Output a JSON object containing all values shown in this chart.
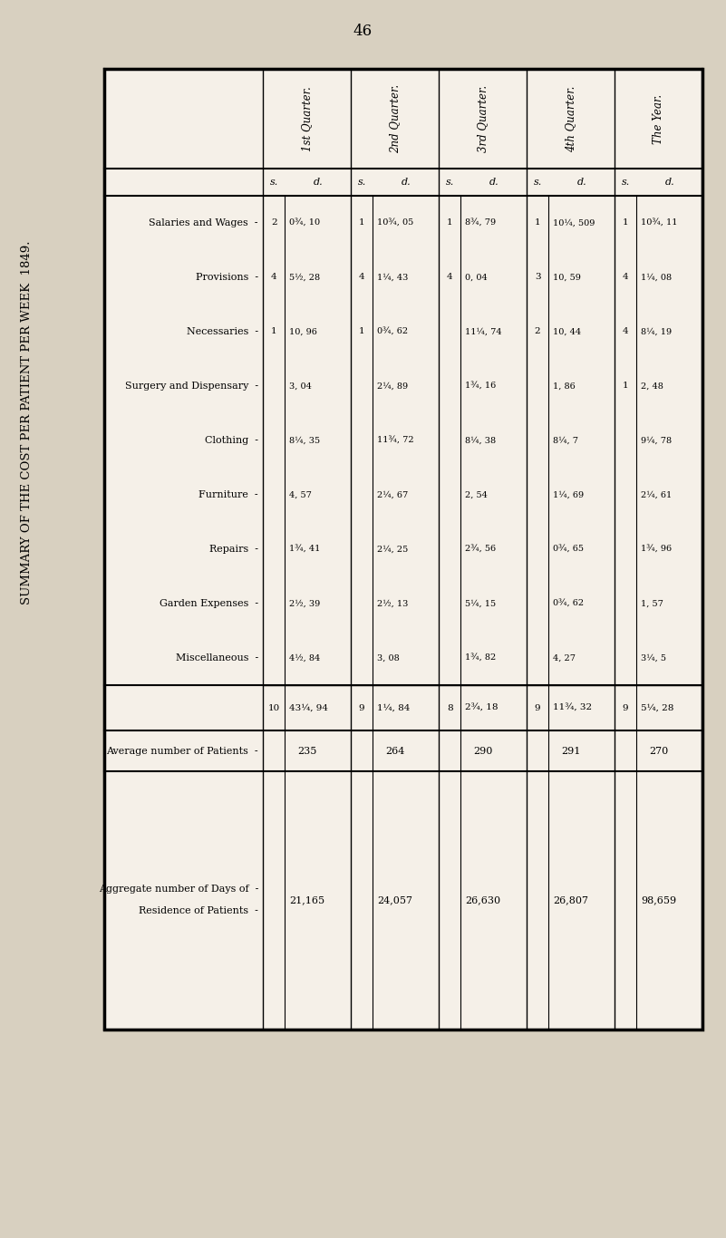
{
  "title": "SUMMARY OF THE COST PER PATIENT PER WEEK  1849.",
  "page_number": "46",
  "background_color": "#d8d0c0",
  "table_bg": "#f5f0e8",
  "rows": [
    "Salaries and Wages",
    "Provisions",
    "Necessaries",
    "Surgery and Dispensary",
    "Clothing",
    "Furniture",
    "Repairs",
    "Garden Expenses",
    "Miscellaneous"
  ],
  "quarters": [
    "1st Quarter.",
    "2nd Quarter.",
    "3rd Quarter.",
    "4th Quarter.",
    "The Year."
  ],
  "data": {
    "1st Quarter": {
      "s": [
        "2",
        "4",
        "1",
        "",
        "",
        "",
        "",
        "",
        ""
      ],
      "d": [
        "0¾, 10",
        "5½, 28",
        "10, 96",
        "3, 04",
        "8¼, 35",
        "4, 57",
        "1¾, 41",
        "2½, 39",
        "4½, 84"
      ],
      "total_s": "10",
      "total_d": "43¼, 94"
    },
    "2nd Quarter": {
      "s": [
        "1",
        "4",
        "1",
        "",
        "",
        "",
        "",
        "",
        ""
      ],
      "d": [
        "10¾, 05",
        "1¼, 43",
        "0¾, 62",
        "2¼, 89",
        "11¾, 72",
        "2¼, 67",
        "2¼, 25",
        "2½, 13",
        "3, 08"
      ],
      "total_s": "9",
      "total_d": "1¼, 84"
    },
    "3rd Quarter": {
      "s": [
        "1",
        "4",
        "",
        "",
        "",
        "",
        "",
        "",
        ""
      ],
      "d": [
        "8¾, 79",
        "0, 04",
        "11¼, 74",
        "1¾, 16",
        "8¼, 38",
        "2, 54",
        "2¾, 56",
        "5¼, 15",
        "1¾, 82"
      ],
      "total_s": "8",
      "total_d": "2¾, 18"
    },
    "4th Quarter": {
      "s": [
        "1",
        "3",
        "2",
        "",
        "",
        "",
        "",
        "",
        ""
      ],
      "d": [
        "10¼, 509",
        "10, 59",
        "10, 44",
        "1, 86",
        "8¼, 7",
        "1¼, 69",
        "0¾, 65",
        "0¾, 62",
        "4, 27"
      ],
      "total_s": "9",
      "total_d": "11¾, 32"
    },
    "The Year": {
      "s": [
        "1",
        "4",
        "4",
        "1",
        "",
        "",
        "",
        "",
        ""
      ],
      "d": [
        "10¾, 11",
        "1¼, 08",
        "8¼, 19",
        "2, 48",
        "9¼, 78",
        "2¼, 61",
        "1¾, 96",
        "1, 57",
        "3¼, 5"
      ],
      "total_s": "9",
      "total_d": "5¼, 28"
    }
  },
  "avg_patients": {
    "1st": "235",
    "2nd": "264",
    "3rd": "290",
    "4th": "291",
    "year": "270"
  },
  "agg_days": {
    "1st": "21,165",
    "2nd": "24,057",
    "3rd": "26,630",
    "4th": "26,807",
    "year": "98,659"
  },
  "font_size_title": 11,
  "font_size_table": 8
}
